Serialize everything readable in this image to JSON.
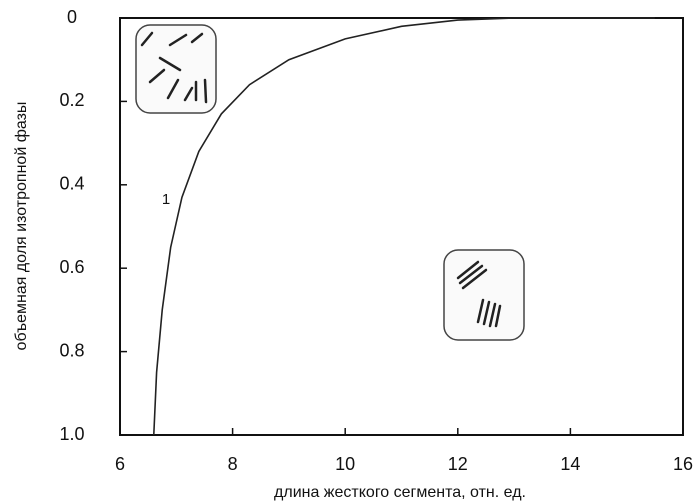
{
  "chart_data": {
    "type": "line",
    "x_label": "длина жесткого сегмента, отн. ед.",
    "y_label": "объемная доля изотропной фазы",
    "annotation": "1",
    "series": [
      {
        "name": "1",
        "color": "#222222",
        "x": [
          6.6,
          6.65,
          6.75,
          6.9,
          7.1,
          7.4,
          7.8,
          8.3,
          9,
          10,
          11,
          12,
          13,
          14,
          15.5
        ],
        "values": [
          1.0,
          0.85,
          0.7,
          0.55,
          0.43,
          0.32,
          0.23,
          0.16,
          0.1,
          0.05,
          0.02,
          0.005,
          0,
          0,
          0
        ]
      }
    ],
    "xlim": [
      6,
      16
    ],
    "xticks": [
      6,
      8,
      10,
      12,
      14,
      16
    ],
    "ylim": [
      0,
      1
    ],
    "yticks": [
      0,
      0.2,
      0.4,
      0.6,
      0.8,
      {
        "value": 1,
        "label": "1.0"
      }
    ],
    "y_inverted": true,
    "grid": false
  }
}
